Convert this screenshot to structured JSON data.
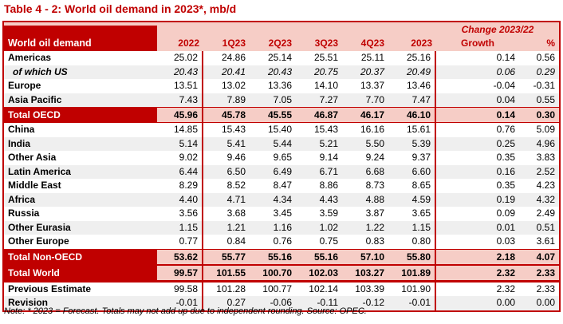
{
  "title": "Table 4 - 2: World oil demand in 2023*, mb/d",
  "note": "Note: * 2023 = Forecast. Totals may not add up due to independent rounding. Source: OPEC.",
  "colors": {
    "dark_red": "#C00000",
    "header_pink": "#F6CDC6",
    "row_stripe": "#EFEFEF"
  },
  "table": {
    "label_header": "World oil demand",
    "change_header": "Change 2023/22",
    "columns": [
      "2022",
      "1Q23",
      "2Q23",
      "3Q23",
      "4Q23",
      "2023",
      "Growth",
      "%"
    ],
    "rows": [
      {
        "label": "Americas",
        "kind": "normal",
        "shade": false,
        "values": [
          "25.02",
          "24.86",
          "25.14",
          "25.51",
          "25.11",
          "25.16",
          "0.14",
          "0.56"
        ]
      },
      {
        "label": "of which US",
        "kind": "sub",
        "shade": true,
        "values": [
          "20.43",
          "20.41",
          "20.43",
          "20.75",
          "20.37",
          "20.49",
          "0.06",
          "0.29"
        ]
      },
      {
        "label": "Europe",
        "kind": "normal",
        "shade": false,
        "values": [
          "13.51",
          "13.02",
          "13.36",
          "14.10",
          "13.37",
          "13.46",
          "-0.04",
          "-0.31"
        ]
      },
      {
        "label": "Asia Pacific",
        "kind": "normal",
        "shade": true,
        "values": [
          "7.43",
          "7.89",
          "7.05",
          "7.27",
          "7.70",
          "7.47",
          "0.04",
          "0.55"
        ]
      },
      {
        "label": "Total OECD",
        "kind": "total",
        "shade": false,
        "values": [
          "45.96",
          "45.78",
          "45.55",
          "46.87",
          "46.17",
          "46.10",
          "0.14",
          "0.30"
        ]
      },
      {
        "label": "China",
        "kind": "normal",
        "shade": false,
        "values": [
          "14.85",
          "15.43",
          "15.40",
          "15.43",
          "16.16",
          "15.61",
          "0.76",
          "5.09"
        ]
      },
      {
        "label": "India",
        "kind": "normal",
        "shade": true,
        "values": [
          "5.14",
          "5.41",
          "5.44",
          "5.21",
          "5.50",
          "5.39",
          "0.25",
          "4.96"
        ]
      },
      {
        "label": "Other Asia",
        "kind": "normal",
        "shade": false,
        "values": [
          "9.02",
          "9.46",
          "9.65",
          "9.14",
          "9.24",
          "9.37",
          "0.35",
          "3.83"
        ]
      },
      {
        "label": "Latin America",
        "kind": "normal",
        "shade": true,
        "values": [
          "6.44",
          "6.50",
          "6.49",
          "6.71",
          "6.68",
          "6.60",
          "0.16",
          "2.52"
        ]
      },
      {
        "label": "Middle East",
        "kind": "normal",
        "shade": false,
        "values": [
          "8.29",
          "8.52",
          "8.47",
          "8.86",
          "8.73",
          "8.65",
          "0.35",
          "4.23"
        ]
      },
      {
        "label": "Africa",
        "kind": "normal",
        "shade": true,
        "values": [
          "4.40",
          "4.71",
          "4.34",
          "4.43",
          "4.88",
          "4.59",
          "0.19",
          "4.32"
        ]
      },
      {
        "label": "Russia",
        "kind": "normal",
        "shade": false,
        "values": [
          "3.56",
          "3.68",
          "3.45",
          "3.59",
          "3.87",
          "3.65",
          "0.09",
          "2.49"
        ]
      },
      {
        "label": "Other Eurasia",
        "kind": "normal",
        "shade": true,
        "values": [
          "1.15",
          "1.21",
          "1.16",
          "1.02",
          "1.22",
          "1.15",
          "0.01",
          "0.51"
        ]
      },
      {
        "label": "Other Europe",
        "kind": "normal",
        "shade": false,
        "values": [
          "0.77",
          "0.84",
          "0.76",
          "0.75",
          "0.83",
          "0.80",
          "0.03",
          "3.61"
        ]
      },
      {
        "label": "Total Non-OECD",
        "kind": "total",
        "shade": false,
        "values": [
          "53.62",
          "55.77",
          "55.16",
          "55.16",
          "57.10",
          "55.80",
          "2.18",
          "4.07"
        ]
      },
      {
        "label": "Total World",
        "kind": "total-world",
        "shade": false,
        "values": [
          "99.57",
          "101.55",
          "100.70",
          "102.03",
          "103.27",
          "101.89",
          "2.32",
          "2.33"
        ]
      },
      {
        "label": "Previous Estimate",
        "kind": "normal",
        "shade": false,
        "values": [
          "99.58",
          "101.28",
          "100.77",
          "102.14",
          "103.39",
          "101.90",
          "2.32",
          "2.33"
        ]
      },
      {
        "label": "Revision",
        "kind": "normal",
        "shade": true,
        "values": [
          "-0.01",
          "0.27",
          "-0.06",
          "-0.11",
          "-0.12",
          "-0.01",
          "0.00",
          "0.00"
        ]
      }
    ]
  }
}
